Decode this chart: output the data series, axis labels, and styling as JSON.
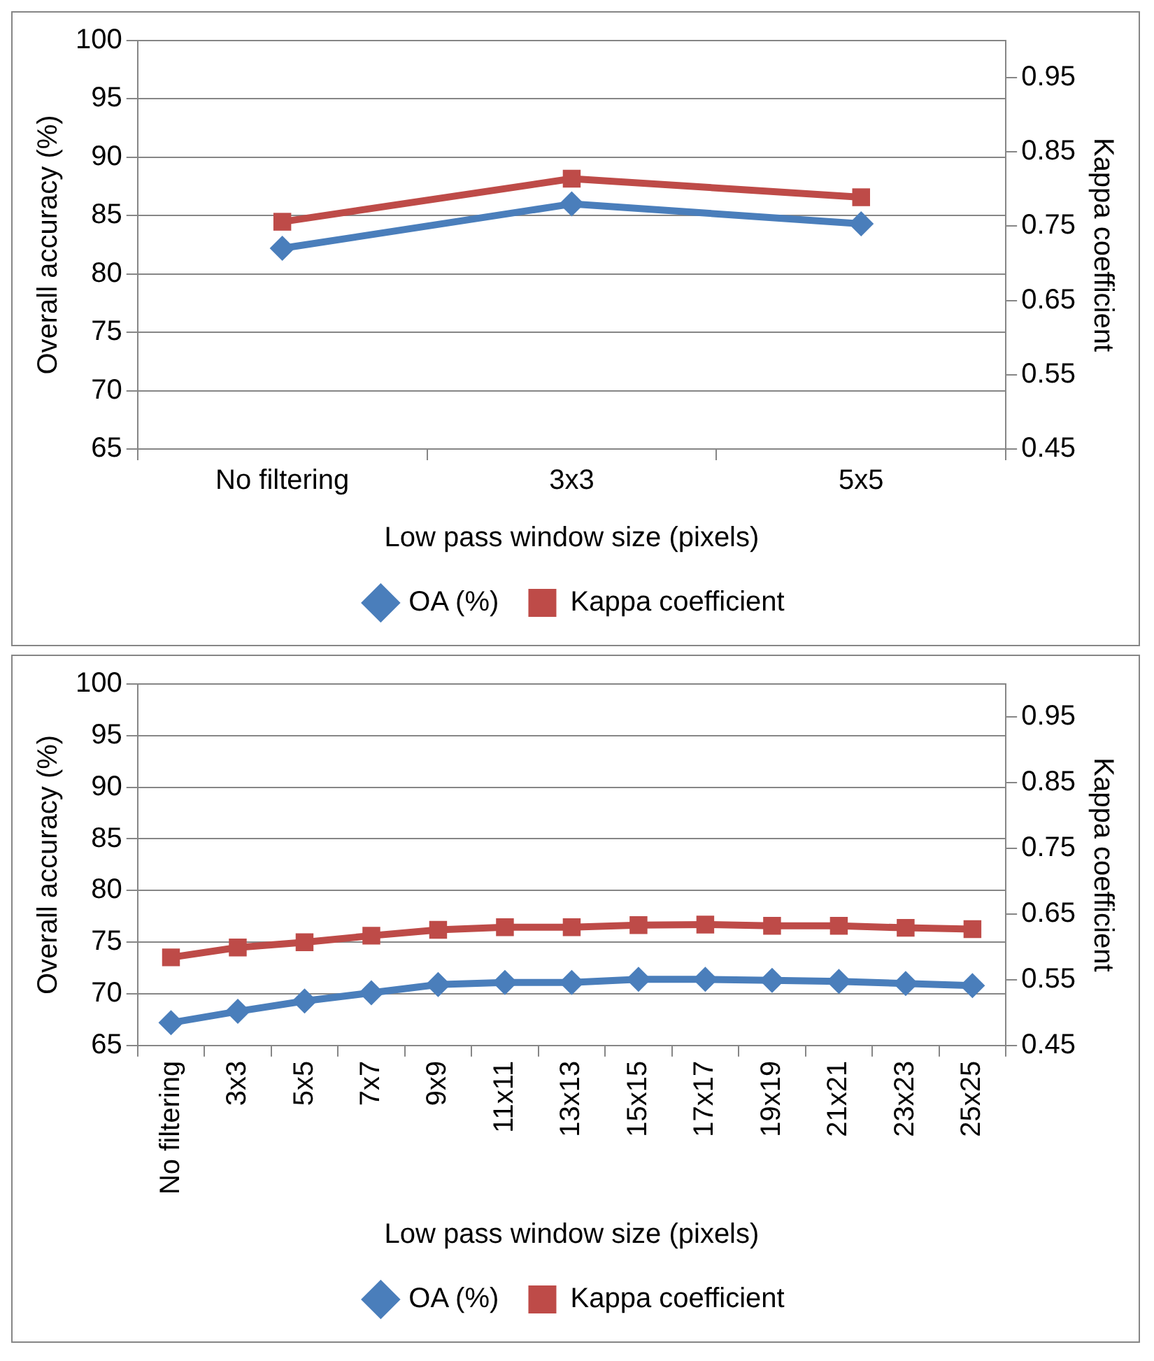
{
  "chart_data": [
    {
      "type": "line",
      "xlabel": "Low pass window size (pixels)",
      "ylabel": "Overall accuracy (%)",
      "y2label": "Kappa coefficient",
      "categories": [
        "No filtering",
        "3x3",
        "5x5"
      ],
      "series": [
        {
          "name": "OA (%)",
          "color": "#4a7ebb",
          "marker": "diamond",
          "values": [
            82.2,
            86.0,
            84.3
          ]
        },
        {
          "name": "Kappa coefficient",
          "color": "#be4b48",
          "marker": "square",
          "axis": "y2",
          "values": [
            0.756,
            0.814,
            0.789
          ]
        }
      ],
      "ylim": [
        65,
        100
      ],
      "yticks": [
        65,
        70,
        75,
        80,
        85,
        90,
        95,
        100
      ],
      "y2lim": [
        0.45,
        1.0
      ],
      "y2ticks": [
        0.45,
        0.55,
        0.65,
        0.75,
        0.85,
        0.95
      ],
      "grid": "y",
      "legend": "bottom",
      "line_style": "solid"
    },
    {
      "type": "line",
      "xlabel": "Low pass window size (pixels)",
      "ylabel": "Overall accuracy (%)",
      "y2label": "Kappa coefficient",
      "categories": [
        "No filtering",
        "3x3",
        "5x5",
        "7x7",
        "9x9",
        "11x11",
        "13x13",
        "15x15",
        "17x17",
        "19x19",
        "21x21",
        "23x23",
        "25x25"
      ],
      "series": [
        {
          "name": "OA (%)",
          "color": "#4a7ebb",
          "marker": "diamond",
          "values": [
            67.2,
            68.3,
            69.3,
            70.1,
            70.9,
            71.1,
            71.1,
            71.4,
            71.4,
            71.3,
            71.2,
            71.0,
            70.8
          ]
        },
        {
          "name": "Kappa coefficient",
          "color": "#be4b48",
          "marker": "square",
          "axis": "y2",
          "values": [
            0.584,
            0.599,
            0.607,
            0.617,
            0.626,
            0.63,
            0.63,
            0.633,
            0.634,
            0.632,
            0.632,
            0.629,
            0.627
          ]
        }
      ],
      "ylim": [
        65,
        100
      ],
      "yticks": [
        65,
        70,
        75,
        80,
        85,
        90,
        95,
        100
      ],
      "y2lim": [
        0.45,
        1.0
      ],
      "y2ticks": [
        0.45,
        0.55,
        0.65,
        0.75,
        0.85,
        0.95
      ],
      "grid": "y",
      "legend": "bottom",
      "line_style": "solid"
    }
  ]
}
